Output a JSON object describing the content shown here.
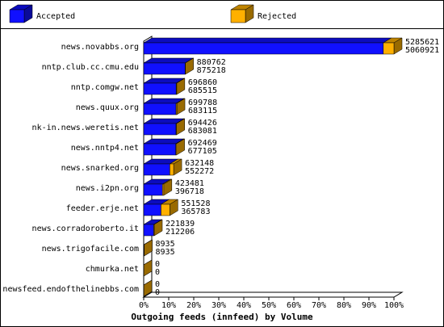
{
  "chart_data": {
    "type": "bar3d-stacked-horizontal",
    "title": "Outgoing feeds (innfeed) by Volume",
    "categories": [
      "news.novabbs.org",
      "nntp.club.cc.cmu.edu",
      "nntp.comgw.net",
      "news.quux.org",
      "nk-in.news.weretis.net",
      "news.nntp4.net",
      "news.snarked.org",
      "news.i2pn.org",
      "feeder.erje.net",
      "news.corradoroberto.it",
      "news.trigofacile.com",
      "chmurka.net",
      "newsfeed.endofthelinebbs.com"
    ],
    "series": [
      {
        "name": "Accepted",
        "color": "#1010ff",
        "values": [
          5060921,
          875218,
          685515,
          683115,
          683081,
          677105,
          552272,
          396718,
          365783,
          212206,
          8935,
          0,
          0
        ]
      },
      {
        "name": "Rejected",
        "color": "#ffb000",
        "values": [
          224700,
          5544,
          11345,
          16673,
          11345,
          15364,
          79876,
          26763,
          185745,
          9633,
          0,
          0,
          0
        ]
      }
    ],
    "totals": [
      5285621,
      880762,
      696860,
      699788,
      694426,
      692469,
      632148,
      423481,
      551528,
      221839,
      8935,
      0,
      0
    ],
    "xlim": [
      0,
      5285621
    ],
    "xticks": [
      {
        "value": 0,
        "label": "0%"
      },
      {
        "value": 528562.1,
        "label": "10%"
      },
      {
        "value": 1057124.2,
        "label": "20%"
      },
      {
        "value": 1585686.3,
        "label": "30%"
      },
      {
        "value": 2114248.4,
        "label": "40%"
      },
      {
        "value": 2642810.5,
        "label": "50%"
      },
      {
        "value": 3171372.6,
        "label": "60%"
      },
      {
        "value": 3699934.7,
        "label": "70%"
      },
      {
        "value": 4228496.8,
        "label": "80%"
      },
      {
        "value": 4757058.9,
        "label": "90%"
      },
      {
        "value": 5285621,
        "label": "100%"
      }
    ]
  }
}
